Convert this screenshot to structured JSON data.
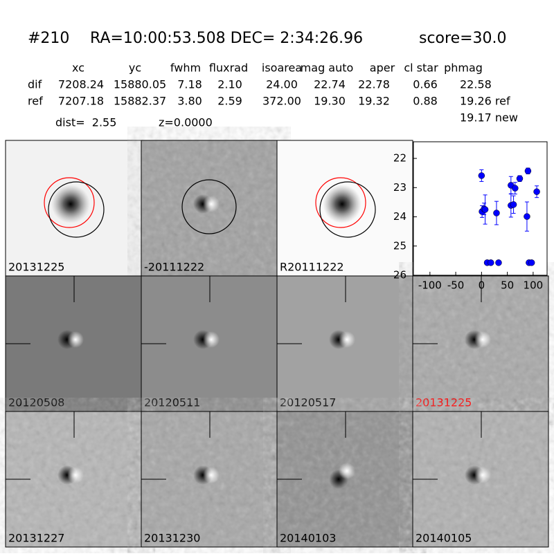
{
  "header": {
    "id": "#210",
    "coords": "RA=10:00:53.508 DEC= 2:34:26.96",
    "score": "score=30.0"
  },
  "table": {
    "columns": [
      "xc",
      "yc",
      "fwhm",
      "fluxrad",
      "isoarea",
      "mag auto",
      "aper",
      "cl star",
      "phmag"
    ],
    "rows": [
      [
        "dif",
        "7208.24",
        "15880.05",
        "7.18",
        "2.10",
        "24.00",
        "22.74",
        "22.78",
        "0.66",
        "22.58"
      ],
      [
        "ref",
        "7207.18",
        "15882.37",
        "3.80",
        "2.59",
        "372.00",
        "19.30",
        "19.32",
        "0.88",
        "19.26 ref"
      ]
    ],
    "extra": "19.17 new"
  },
  "dist": "dist=  2.55",
  "z": "z=0.0000",
  "panels": [
    {
      "label": "20131225"
    },
    {
      "label": "-20111222"
    },
    {
      "label": "R20111222"
    },
    {
      "label": "20120508"
    },
    {
      "label": "20120511"
    },
    {
      "label": "20120517"
    },
    {
      "label": "20131225",
      "color": "#ff0000"
    },
    {
      "label": "20131227"
    },
    {
      "label": "20131230"
    },
    {
      "label": "20140103"
    },
    {
      "label": "20140105"
    }
  ],
  "chart_data": {
    "type": "scatter",
    "color": "#0000ff",
    "y_inverted": true,
    "x": [
      0,
      1,
      5,
      7,
      11,
      18,
      29,
      33,
      57,
      57,
      62,
      65,
      74,
      88,
      90,
      92,
      97,
      107
    ],
    "values": [
      22.59,
      23.82,
      23.73,
      23.75,
      25.57,
      25.57,
      23.87,
      25.57,
      22.92,
      23.61,
      23.58,
      23.02,
      22.69,
      23.99,
      22.43,
      25.57,
      25.57,
      23.14
    ],
    "errors": [
      0.2,
      0.2,
      0.2,
      0.5,
      0,
      0,
      0.4,
      0,
      0.3,
      0.4,
      0.3,
      0.2,
      0.1,
      0.5,
      0.1,
      0,
      0,
      0.2
    ],
    "xlim": [
      -132,
      127
    ],
    "ylim": [
      21.43,
      26
    ],
    "xticks": [
      -100,
      -50,
      0,
      50,
      100
    ],
    "yticks": [
      22,
      23,
      24,
      25,
      26
    ]
  }
}
